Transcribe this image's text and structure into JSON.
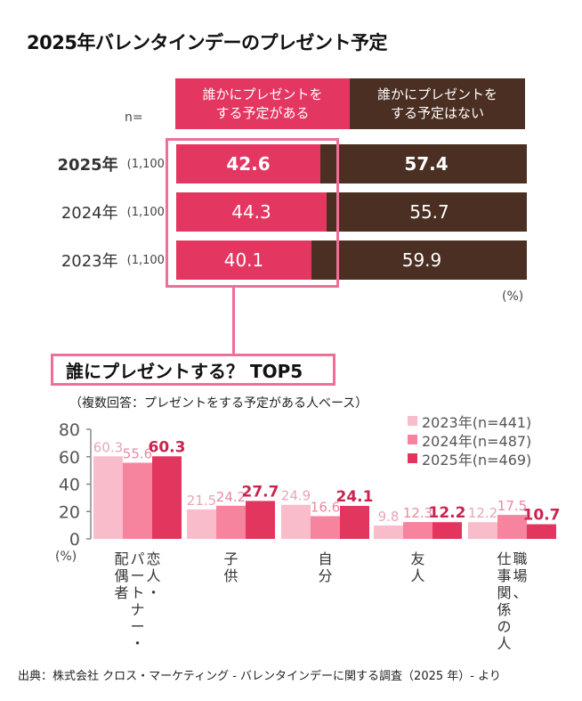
{
  "title": "2025年バレンタインデーのプレゼント予定",
  "colors": {
    "yes": "#e33762",
    "no": "#4a2f22",
    "frame": "#ef7097",
    "y2023": "#f8bccb",
    "y2024": "#f7849f",
    "y2025": "#e2365f",
    "label2023": "#e6a6b8",
    "label2024": "#e88aa4",
    "label2025": "#c9244f"
  },
  "top_chart": {
    "n_label": "n=",
    "header_yes_line1": "誰かにプレゼントを",
    "header_yes_line2": "する予定がある",
    "header_no_line1": "誰かにプレゼントを",
    "header_no_line2": "する予定はない",
    "unit": "(%)",
    "rows": [
      {
        "year": "2025年",
        "n": "(1,100)",
        "yes": "42.6",
        "no": "57.4",
        "bold": true
      },
      {
        "year": "2024年",
        "n": "(1,100)",
        "yes": "44.3",
        "no": "55.7",
        "bold": false
      },
      {
        "year": "2023年",
        "n": "(1,100)",
        "yes": "40.1",
        "no": "59.9",
        "bold": false
      }
    ]
  },
  "bottom_chart": {
    "title": "誰にプレゼントする？ TOP5",
    "subtitle": "（複数回答：プレゼントをする予定がある人ベース）",
    "unit": "(%)",
    "legend": [
      "2023年(n=441)",
      "2024年(n=487)",
      "2025年(n=469)"
    ],
    "y_ticks": [
      "0",
      "20",
      "40",
      "60",
      "80"
    ]
  },
  "chart_data": [
    {
      "type": "bar",
      "orientation": "horizontal-stacked",
      "title": "2025年バレンタインデーのプレゼント予定",
      "categories": [
        "2025年",
        "2024年",
        "2023年"
      ],
      "sample_sizes": [
        1100,
        1100,
        1100
      ],
      "series": [
        {
          "name": "誰かにプレゼントをする予定がある",
          "values": [
            42.6,
            44.3,
            40.1
          ]
        },
        {
          "name": "誰かにプレゼントをする予定はない",
          "values": [
            57.4,
            55.7,
            59.9
          ]
        }
      ],
      "unit": "%",
      "xlim": [
        0,
        100
      ]
    },
    {
      "type": "bar",
      "title": "誰にプレゼントする？ TOP5",
      "subtitle": "（複数回答：プレゼントをする予定がある人ベース）",
      "categories": [
        "恋人・パートナー・配偶者",
        "子供",
        "自分",
        "友人",
        "職場、仕事関係の人"
      ],
      "category_lines": [
        [
          "恋人・",
          "パートナー・",
          "配偶者"
        ],
        [
          "子供"
        ],
        [
          "自分"
        ],
        [
          "友人"
        ],
        [
          "職場、",
          "仕事関係の人"
        ]
      ],
      "series": [
        {
          "name": "2023年(n=441)",
          "values": [
            60.3,
            21.5,
            24.9,
            9.8,
            12.2
          ]
        },
        {
          "name": "2024年(n=487)",
          "values": [
            55.6,
            24.2,
            16.6,
            12.3,
            17.5
          ]
        },
        {
          "name": "2025年(n=469)",
          "values": [
            60.3,
            27.7,
            24.1,
            12.2,
            10.7
          ]
        }
      ],
      "ylabel": "(%)",
      "ylim": [
        0,
        80
      ],
      "y_ticks": [
        0,
        20,
        40,
        60,
        80
      ],
      "legend_position": "top-right",
      "grid": false
    }
  ],
  "source": "出典：株式会社 クロス・マーケティング - バレンタインデーに関する調査（2025 年）- より"
}
